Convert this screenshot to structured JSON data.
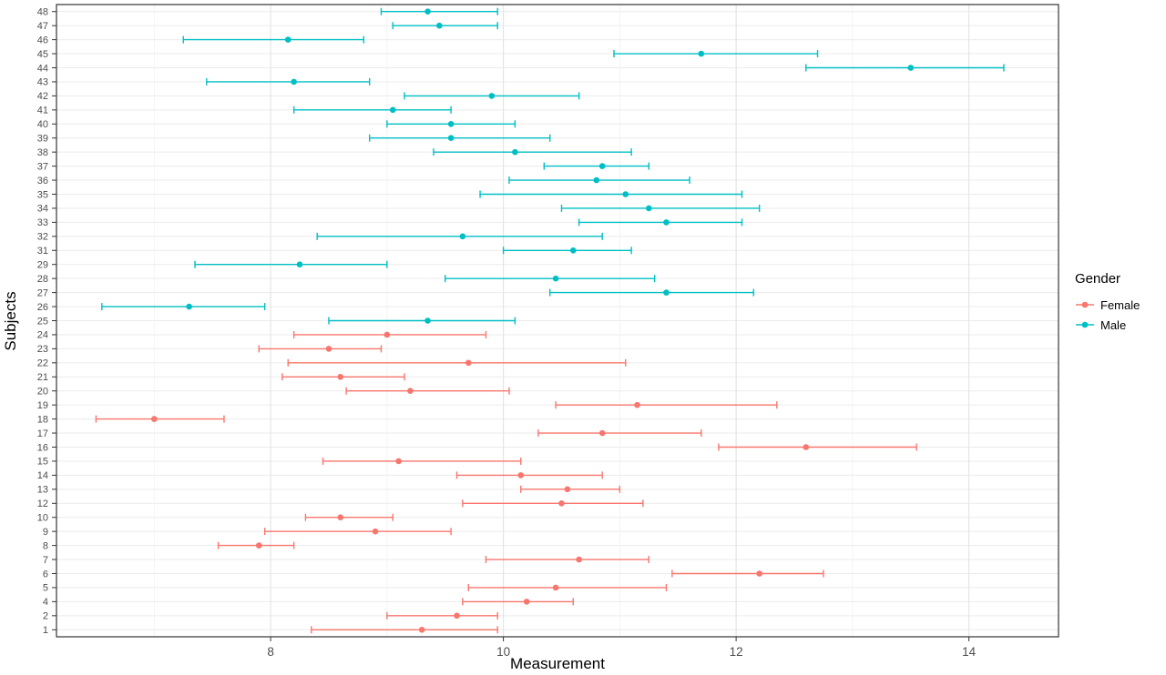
{
  "chart_data": {
    "type": "scatter",
    "subtype": "dotplot_with_horizontal_errorbars",
    "title": "",
    "xlabel": "Measurement",
    "ylabel": "Subjects",
    "xlim": [
      6.16,
      14.77
    ],
    "x_major_ticks": [
      8,
      10,
      12,
      14
    ],
    "x_minor_ticks": [
      7,
      9,
      11,
      13
    ],
    "grid": true,
    "legend": {
      "title": "Gender",
      "position": "right",
      "entries": [
        {
          "label": "Female",
          "color": "#F8766D"
        },
        {
          "label": "Male",
          "color": "#00BFC4"
        }
      ]
    },
    "colors": {
      "Female": "#F8766D",
      "Male": "#00BFC4"
    },
    "rows": [
      {
        "subject": "48",
        "gender": "Male",
        "value": 9.35,
        "low": 8.95,
        "high": 9.95
      },
      {
        "subject": "47",
        "gender": "Male",
        "value": 9.45,
        "low": 9.05,
        "high": 9.95
      },
      {
        "subject": "46",
        "gender": "Male",
        "value": 8.15,
        "low": 7.25,
        "high": 8.8
      },
      {
        "subject": "45",
        "gender": "Male",
        "value": 11.7,
        "low": 10.95,
        "high": 12.7
      },
      {
        "subject": "44",
        "gender": "Male",
        "value": 13.5,
        "low": 12.6,
        "high": 14.3
      },
      {
        "subject": "43",
        "gender": "Male",
        "value": 8.2,
        "low": 7.45,
        "high": 8.85
      },
      {
        "subject": "42",
        "gender": "Male",
        "value": 9.9,
        "low": 9.15,
        "high": 10.65
      },
      {
        "subject": "41",
        "gender": "Male",
        "value": 9.05,
        "low": 8.2,
        "high": 9.55
      },
      {
        "subject": "40",
        "gender": "Male",
        "value": 9.55,
        "low": 9.0,
        "high": 10.1
      },
      {
        "subject": "39",
        "gender": "Male",
        "value": 9.55,
        "low": 8.85,
        "high": 10.4
      },
      {
        "subject": "38",
        "gender": "Male",
        "value": 10.1,
        "low": 9.4,
        "high": 11.1
      },
      {
        "subject": "37",
        "gender": "Male",
        "value": 10.85,
        "low": 10.35,
        "high": 11.25
      },
      {
        "subject": "36",
        "gender": "Male",
        "value": 10.8,
        "low": 10.05,
        "high": 11.6
      },
      {
        "subject": "35",
        "gender": "Male",
        "value": 11.05,
        "low": 9.8,
        "high": 12.05
      },
      {
        "subject": "34",
        "gender": "Male",
        "value": 11.25,
        "low": 10.5,
        "high": 12.2
      },
      {
        "subject": "33",
        "gender": "Male",
        "value": 11.4,
        "low": 10.65,
        "high": 12.05
      },
      {
        "subject": "32",
        "gender": "Male",
        "value": 9.65,
        "low": 8.4,
        "high": 10.85
      },
      {
        "subject": "31",
        "gender": "Male",
        "value": 10.6,
        "low": 10.0,
        "high": 11.1
      },
      {
        "subject": "29",
        "gender": "Male",
        "value": 8.25,
        "low": 7.35,
        "high": 9.0
      },
      {
        "subject": "28",
        "gender": "Male",
        "value": 10.45,
        "low": 9.5,
        "high": 11.3
      },
      {
        "subject": "27",
        "gender": "Male",
        "value": 11.4,
        "low": 10.4,
        "high": 12.15
      },
      {
        "subject": "26",
        "gender": "Male",
        "value": 7.3,
        "low": 6.55,
        "high": 7.95
      },
      {
        "subject": "25",
        "gender": "Male",
        "value": 9.35,
        "low": 8.5,
        "high": 10.1
      },
      {
        "subject": "24",
        "gender": "Female",
        "value": 9.0,
        "low": 8.2,
        "high": 9.85
      },
      {
        "subject": "23",
        "gender": "Female",
        "value": 8.5,
        "low": 7.9,
        "high": 8.95
      },
      {
        "subject": "22",
        "gender": "Female",
        "value": 9.7,
        "low": 8.15,
        "high": 11.05
      },
      {
        "subject": "21",
        "gender": "Female",
        "value": 8.6,
        "low": 8.1,
        "high": 9.15
      },
      {
        "subject": "20",
        "gender": "Female",
        "value": 9.2,
        "low": 8.65,
        "high": 10.05
      },
      {
        "subject": "19",
        "gender": "Female",
        "value": 11.15,
        "low": 10.45,
        "high": 12.35
      },
      {
        "subject": "18",
        "gender": "Female",
        "value": 7.0,
        "low": 6.5,
        "high": 7.6
      },
      {
        "subject": "17",
        "gender": "Female",
        "value": 10.85,
        "low": 10.3,
        "high": 11.7
      },
      {
        "subject": "16",
        "gender": "Female",
        "value": 12.6,
        "low": 11.85,
        "high": 13.55
      },
      {
        "subject": "15",
        "gender": "Female",
        "value": 9.1,
        "low": 8.45,
        "high": 10.15
      },
      {
        "subject": "14",
        "gender": "Female",
        "value": 10.15,
        "low": 9.6,
        "high": 10.85
      },
      {
        "subject": "13",
        "gender": "Female",
        "value": 10.55,
        "low": 10.15,
        "high": 11.0
      },
      {
        "subject": "12",
        "gender": "Female",
        "value": 10.5,
        "low": 9.65,
        "high": 11.2
      },
      {
        "subject": "10",
        "gender": "Female",
        "value": 8.6,
        "low": 8.3,
        "high": 9.05
      },
      {
        "subject": "9",
        "gender": "Female",
        "value": 8.9,
        "low": 7.95,
        "high": 9.55
      },
      {
        "subject": "8",
        "gender": "Female",
        "value": 7.9,
        "low": 7.55,
        "high": 8.2
      },
      {
        "subject": "7",
        "gender": "Female",
        "value": 10.65,
        "low": 9.85,
        "high": 11.25
      },
      {
        "subject": "6",
        "gender": "Female",
        "value": 12.2,
        "low": 11.45,
        "high": 12.75
      },
      {
        "subject": "5",
        "gender": "Female",
        "value": 10.45,
        "low": 9.7,
        "high": 11.4
      },
      {
        "subject": "4",
        "gender": "Female",
        "value": 10.2,
        "low": 9.65,
        "high": 10.6
      },
      {
        "subject": "2",
        "gender": "Female",
        "value": 9.6,
        "low": 9.0,
        "high": 9.95
      },
      {
        "subject": "1",
        "gender": "Female",
        "value": 9.3,
        "low": 8.35,
        "high": 9.95
      }
    ]
  }
}
